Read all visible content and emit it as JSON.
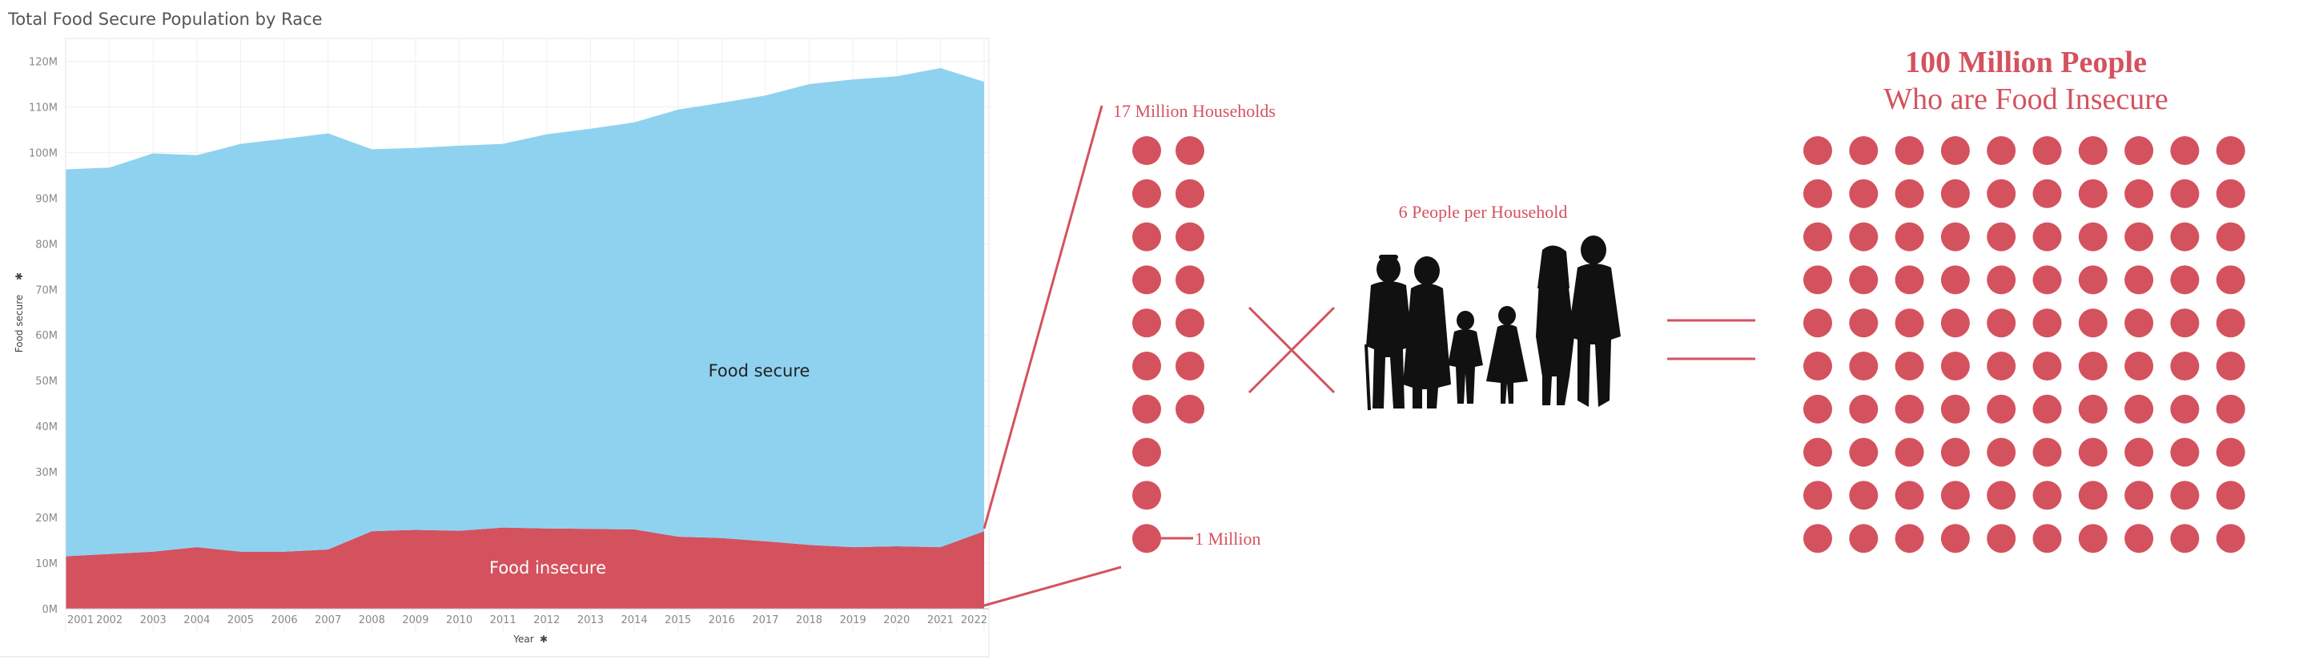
{
  "chart_data": {
    "type": "area",
    "stacked": true,
    "title": "Total Food Secure Population by Race",
    "xlabel": "Year",
    "ylabel": "Food secure",
    "ylim": [
      0,
      125
    ],
    "yticks": [
      {
        "value": 0,
        "label": "0M"
      },
      {
        "value": 10,
        "label": "10M"
      },
      {
        "value": 20,
        "label": "20M"
      },
      {
        "value": 30,
        "label": "30M"
      },
      {
        "value": 40,
        "label": "40M"
      },
      {
        "value": 50,
        "label": "50M"
      },
      {
        "value": 60,
        "label": "60M"
      },
      {
        "value": 70,
        "label": "70M"
      },
      {
        "value": 80,
        "label": "80M"
      },
      {
        "value": 90,
        "label": "90M"
      },
      {
        "value": 100,
        "label": "100M"
      },
      {
        "value": 110,
        "label": "110M"
      },
      {
        "value": 120,
        "label": "120M"
      }
    ],
    "x": [
      "2001",
      "2002",
      "2003",
      "2004",
      "2005",
      "2006",
      "2007",
      "2008",
      "2009",
      "2010",
      "2011",
      "2012",
      "2013",
      "2014",
      "2015",
      "2016",
      "2017",
      "2018",
      "2019",
      "2020",
      "2021",
      "2022"
    ],
    "series": [
      {
        "name": "Food insecure",
        "color": "#D4525E",
        "label_color": "#ffffff",
        "values": [
          11.5,
          12.0,
          12.5,
          13.5,
          12.5,
          12.5,
          13.0,
          17.0,
          17.3,
          17.1,
          17.8,
          17.6,
          17.5,
          17.4,
          15.8,
          15.5,
          14.8,
          14.0,
          13.5,
          13.7,
          13.5,
          17.0
        ]
      },
      {
        "name": "Food secure",
        "color": "#8ED2F0",
        "label_color": "#222222",
        "values": [
          84.8,
          84.7,
          87.3,
          85.9,
          89.4,
          90.5,
          91.2,
          83.7,
          83.7,
          84.4,
          84.1,
          86.4,
          87.7,
          89.2,
          93.6,
          95.4,
          97.7,
          101.0,
          102.5,
          103.0,
          105.0,
          98.5
        ]
      }
    ],
    "grid": true
  },
  "infographic": {
    "households_label": "17 Million Households",
    "million_label": "1 Million",
    "per_household_label": "6 People per Household",
    "result_heading_line1": "100 Million People",
    "result_heading_line2": "Who are Food Insecure",
    "accent_color": "#D4525E",
    "households_dots": 17,
    "people_dots": 100
  }
}
